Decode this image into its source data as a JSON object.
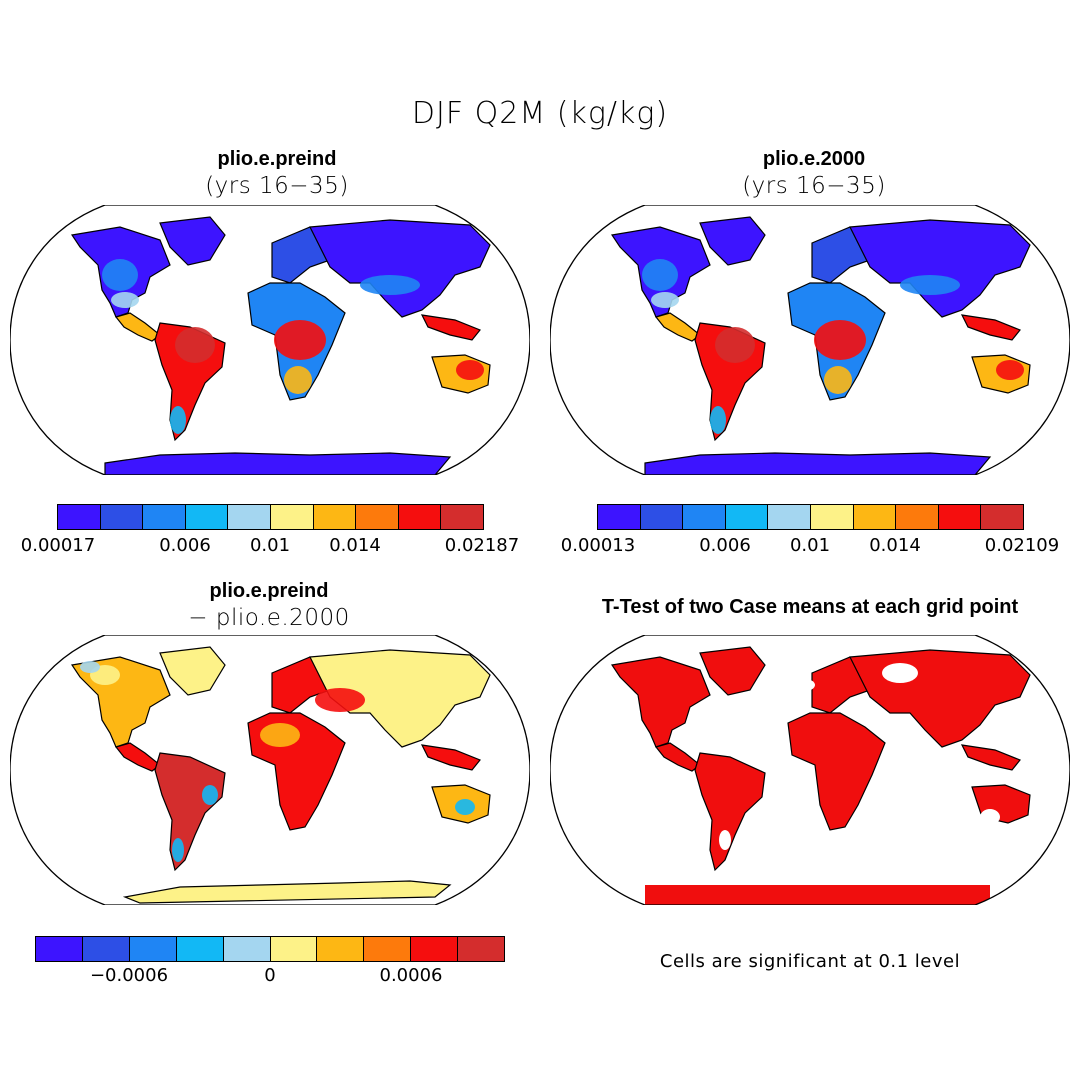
{
  "figure": {
    "title": "DJF Q2M (kg/kg)"
  },
  "panels": [
    {
      "title": "plio.e.preind",
      "subtitle": "(yrs 16−35)"
    },
    {
      "title": "plio.e.2000",
      "subtitle": "(yrs 16−35)"
    },
    {
      "title": "plio.e.preind",
      "subtitle": "− plio.e.2000"
    },
    {
      "title": "T-Test of two Case means at each grid point"
    }
  ],
  "colorbars": [
    {
      "ticks": [
        "0.00017",
        "0.006",
        "0.01",
        "0.014",
        "0.02187"
      ]
    },
    {
      "ticks": [
        "0.00013",
        "0.006",
        "0.01",
        "0.014",
        "0.02109"
      ]
    },
    {
      "ticks": [
        "−0.0006",
        "0",
        "0.0006"
      ]
    }
  ],
  "ttest": {
    "note": "Cells are significant at 0.1 level"
  },
  "palette": {
    "levels": [
      "#3d14ff",
      "#2d4fe6",
      "#1f85f4",
      "#12b8f5",
      "#a4d6f0",
      "#fdf288",
      "#fdb714",
      "#fd7a0c",
      "#f50e0e",
      "#d42d2d"
    ],
    "significant": "#f00e0e",
    "land_outline": "#000000"
  }
}
